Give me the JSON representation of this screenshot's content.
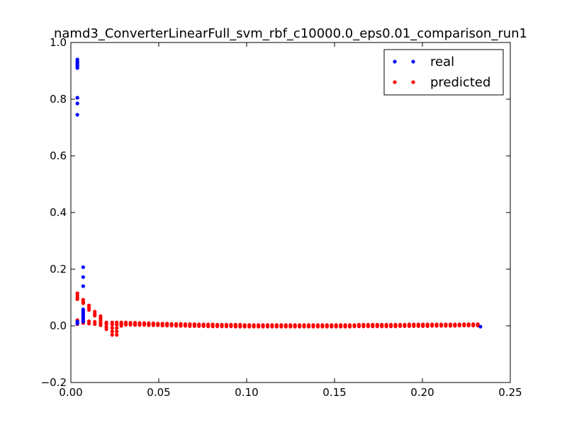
{
  "chart_data": {
    "type": "scatter",
    "title": "namd3_ConverterLinearFull_svm_rbf_c10000.0_eps0.01_comparison_run1",
    "xlabel": "",
    "ylabel": "",
    "xlim": [
      0.0,
      0.25
    ],
    "ylim": [
      -0.2,
      1.0
    ],
    "x_ticks": [
      0.0,
      0.05,
      0.1,
      0.15,
      0.2,
      0.25
    ],
    "x_tick_labels": [
      "0.00",
      "0.05",
      "0.10",
      "0.15",
      "0.20",
      "0.25"
    ],
    "y_ticks": [
      -0.2,
      0.0,
      0.2,
      0.4,
      0.6,
      0.8,
      1.0
    ],
    "y_tick_labels": [
      "−0.2",
      "0.0",
      "0.2",
      "0.4",
      "0.6",
      "0.8",
      "1.0"
    ],
    "grid": false,
    "legend_position": "top-right",
    "series": [
      {
        "name": "real",
        "color": "#0000ff",
        "points": [
          [
            0.0037,
            0.94
          ],
          [
            0.0037,
            0.935
          ],
          [
            0.0037,
            0.93
          ],
          [
            0.0037,
            0.925
          ],
          [
            0.0037,
            0.92
          ],
          [
            0.0037,
            0.915
          ],
          [
            0.0037,
            0.91
          ],
          [
            0.0037,
            0.805
          ],
          [
            0.0037,
            0.785
          ],
          [
            0.0037,
            0.745
          ],
          [
            0.0037,
            0.015
          ],
          [
            0.0037,
            0.008
          ],
          [
            0.007,
            0.207
          ],
          [
            0.007,
            0.172
          ],
          [
            0.007,
            0.14
          ],
          [
            0.007,
            0.058
          ],
          [
            0.007,
            0.052
          ],
          [
            0.007,
            0.046
          ],
          [
            0.007,
            0.04
          ],
          [
            0.007,
            0.034
          ],
          [
            0.007,
            0.028
          ],
          [
            0.007,
            0.022
          ],
          [
            0.007,
            0.015
          ],
          [
            0.233,
            -0.003
          ]
        ]
      },
      {
        "name": "predicted",
        "color": "#ff0000",
        "points": [
          [
            0.0037,
            0.115
          ],
          [
            0.0037,
            0.108
          ],
          [
            0.0037,
            0.1
          ],
          [
            0.0037,
            0.094
          ],
          [
            0.0037,
            0.02
          ],
          [
            0.0037,
            0.012
          ],
          [
            0.0037,
            0.006
          ],
          [
            0.007,
            0.092
          ],
          [
            0.007,
            0.086
          ],
          [
            0.007,
            0.08
          ],
          [
            0.007,
            0.018
          ],
          [
            0.007,
            0.01
          ],
          [
            0.0103,
            0.072
          ],
          [
            0.0103,
            0.064
          ],
          [
            0.0103,
            0.056
          ],
          [
            0.0103,
            0.016
          ],
          [
            0.0103,
            0.008
          ],
          [
            0.0136,
            0.05
          ],
          [
            0.0136,
            0.043
          ],
          [
            0.0136,
            0.036
          ],
          [
            0.0136,
            0.014
          ],
          [
            0.0136,
            0.006
          ],
          [
            0.0169,
            0.034
          ],
          [
            0.0169,
            0.026
          ],
          [
            0.0169,
            0.018
          ],
          [
            0.0169,
            0.01
          ],
          [
            0.0169,
            0.002
          ],
          [
            0.0202,
            0.012
          ],
          [
            0.0202,
            0.006
          ],
          [
            0.0202,
            -0.004
          ],
          [
            0.0202,
            -0.012
          ],
          [
            0.0235,
            0.012
          ],
          [
            0.0235,
            0.004
          ],
          [
            0.0235,
            -0.008
          ],
          [
            0.0235,
            -0.02
          ],
          [
            0.0235,
            -0.032
          ],
          [
            0.0261,
            0.012
          ],
          [
            0.0261,
            0.004
          ],
          [
            0.0261,
            -0.008
          ],
          [
            0.0261,
            -0.02
          ],
          [
            0.0261,
            -0.032
          ],
          [
            0.0287,
            0.012
          ],
          [
            0.0287,
            0.008
          ],
          [
            0.0287,
            0.004
          ],
          [
            0.0287,
            0.0
          ]
        ],
        "row_x": [
          0.0313,
          0.0339,
          0.0365,
          0.0391,
          0.0417,
          0.0443,
          0.0469,
          0.0495,
          0.0521,
          0.0547,
          0.0573,
          0.0599,
          0.0625,
          0.0651,
          0.0677,
          0.0703,
          0.0729,
          0.0755,
          0.0781,
          0.0807,
          0.0833,
          0.0859,
          0.0885,
          0.0911,
          0.0937,
          0.0963,
          0.0989,
          0.1015,
          0.1041,
          0.1067,
          0.1093,
          0.1119,
          0.1145,
          0.1171,
          0.1197,
          0.1223,
          0.1249,
          0.1275,
          0.1301,
          0.1327,
          0.1353,
          0.1379,
          0.1405,
          0.1431,
          0.1457,
          0.1483,
          0.1509,
          0.1535,
          0.1561,
          0.1587,
          0.1613,
          0.1639,
          0.1665,
          0.1691,
          0.1717,
          0.1743,
          0.1769,
          0.1795,
          0.1821,
          0.1847,
          0.1873,
          0.1899,
          0.1925,
          0.1951,
          0.1977,
          0.2003,
          0.2029,
          0.2055,
          0.2081,
          0.2107,
          0.2133,
          0.2159,
          0.2185,
          0.2211,
          0.2237,
          0.2263,
          0.2289,
          0.2315
        ],
        "row_y_top": [
          0.012,
          0.011,
          0.011,
          0.01,
          0.01,
          0.009,
          0.009,
          0.008,
          0.008,
          0.008,
          0.007,
          0.007,
          0.007,
          0.006,
          0.006,
          0.006,
          0.005,
          0.005,
          0.005,
          0.005,
          0.004,
          0.004,
          0.004,
          0.004,
          0.004,
          0.004,
          0.003,
          0.003,
          0.003,
          0.003,
          0.003,
          0.003,
          0.003,
          0.003,
          0.003,
          0.003,
          0.003,
          0.003,
          0.003,
          0.003,
          0.003,
          0.003,
          0.003,
          0.003,
          0.003,
          0.003,
          0.003,
          0.003,
          0.003,
          0.003,
          0.003,
          0.004,
          0.004,
          0.004,
          0.004,
          0.004,
          0.004,
          0.004,
          0.004,
          0.004,
          0.004,
          0.004,
          0.005,
          0.005,
          0.005,
          0.005,
          0.005,
          0.005,
          0.005,
          0.005,
          0.005,
          0.005,
          0.005,
          0.005,
          0.006,
          0.006,
          0.006,
          0.006
        ],
        "row_y_bottom": [
          0.004,
          0.004,
          0.003,
          0.003,
          0.003,
          0.002,
          0.002,
          0.002,
          0.001,
          0.001,
          0.001,
          0.0,
          0.0,
          0.0,
          -0.001,
          -0.001,
          -0.001,
          -0.001,
          -0.002,
          -0.002,
          -0.002,
          -0.002,
          -0.002,
          -0.002,
          -0.003,
          -0.003,
          -0.003,
          -0.003,
          -0.003,
          -0.003,
          -0.003,
          -0.003,
          -0.003,
          -0.003,
          -0.003,
          -0.003,
          -0.003,
          -0.003,
          -0.003,
          -0.003,
          -0.003,
          -0.003,
          -0.003,
          -0.003,
          -0.003,
          -0.003,
          -0.003,
          -0.003,
          -0.003,
          -0.003,
          -0.002,
          -0.002,
          -0.002,
          -0.002,
          -0.002,
          -0.002,
          -0.002,
          -0.002,
          -0.002,
          -0.002,
          -0.001,
          -0.001,
          -0.001,
          -0.001,
          -0.001,
          -0.001,
          -0.001,
          0.0,
          0.0,
          0.0,
          0.0,
          0.0,
          0.0,
          0.001,
          0.001,
          0.001,
          0.001,
          0.001
        ]
      }
    ]
  }
}
